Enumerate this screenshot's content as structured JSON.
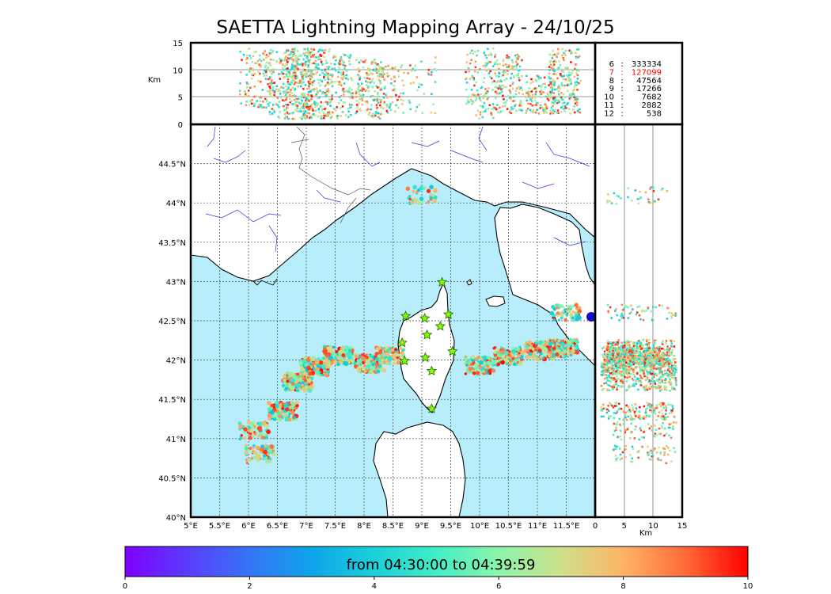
{
  "title": "SAETTA Lightning Mapping Array - 24/10/25",
  "colors": {
    "sea": "#b8eefb",
    "land": "#ffffff",
    "coast": "#000000",
    "rivers": "#3333dd",
    "borders": "#555555",
    "grid": "#444444",
    "station_fill": "#7fff00",
    "station_stroke": "#226600",
    "highlight_stat": "#ff0000"
  },
  "chart_data": {
    "type": "scatter",
    "map": {
      "lon_range": [
        5,
        12
      ],
      "lat_range": [
        40,
        45
      ],
      "lon_ticks": [
        "5°E",
        "5.5°E",
        "6°E",
        "6.5°E",
        "7°E",
        "7.5°E",
        "8°E",
        "8.5°E",
        "9°E",
        "9.5°E",
        "10°E",
        "10.5°E",
        "11°E",
        "11.5°E"
      ],
      "lat_ticks": [
        "40°N",
        "40.5°N",
        "41°N",
        "41.5°N",
        "42°N",
        "42.5°N",
        "43°N",
        "43.5°N",
        "44°N",
        "44.5°N"
      ],
      "grid": true
    },
    "altitude_panel": {
      "ylabel": "Km",
      "y_ticks": [
        "0",
        "5",
        "10",
        "15"
      ],
      "ylim": [
        0,
        15
      ]
    },
    "side_panel": {
      "xlabel": "Km",
      "x_ticks": [
        "0",
        "5",
        "10",
        "15"
      ],
      "xlim": [
        0,
        15
      ]
    },
    "station_counts": [
      {
        "stations": "6",
        "count": "333334",
        "highlight": false
      },
      {
        "stations": "7",
        "count": "127099",
        "highlight": true
      },
      {
        "stations": "8",
        "count": "47564",
        "highlight": false
      },
      {
        "stations": "9",
        "count": "17266",
        "highlight": false
      },
      {
        "stations": "10",
        "count": "7682",
        "highlight": false
      },
      {
        "stations": "11",
        "count": "2882",
        "highlight": false
      },
      {
        "stations": "12",
        "count": "538",
        "highlight": false
      }
    ],
    "stations": [
      {
        "lon": 9.35,
        "lat": 42.99
      },
      {
        "lon": 8.72,
        "lat": 42.56
      },
      {
        "lon": 9.05,
        "lat": 42.53
      },
      {
        "lon": 9.46,
        "lat": 42.58
      },
      {
        "lon": 9.32,
        "lat": 42.43
      },
      {
        "lon": 9.09,
        "lat": 42.32
      },
      {
        "lon": 8.66,
        "lat": 42.22
      },
      {
        "lon": 9.53,
        "lat": 42.11
      },
      {
        "lon": 8.7,
        "lat": 41.99
      },
      {
        "lon": 9.06,
        "lat": 42.03
      },
      {
        "lon": 9.17,
        "lat": 41.86
      },
      {
        "lon": 9.17,
        "lat": 41.38
      }
    ],
    "clusters": [
      {
        "lon": 6.1,
        "lat": 41.1,
        "zmin": 3,
        "zmax": 14,
        "n": 22,
        "slope": 0
      },
      {
        "lon": 6.2,
        "lat": 40.8,
        "zmin": 3,
        "zmax": 14,
        "n": 22,
        "slope": 0
      },
      {
        "lon": 6.6,
        "lat": 41.35,
        "zmin": 1,
        "zmax": 14,
        "n": 50,
        "slope": 0
      },
      {
        "lon": 6.85,
        "lat": 41.72,
        "zmin": 1,
        "zmax": 14,
        "n": 70,
        "slope": 0
      },
      {
        "lon": 7.15,
        "lat": 41.92,
        "zmin": 1,
        "zmax": 14,
        "n": 70,
        "slope": 0
      },
      {
        "lon": 7.55,
        "lat": 42.06,
        "zmin": 1,
        "zmax": 13,
        "n": 50,
        "slope": 0
      },
      {
        "lon": 8.1,
        "lat": 41.95,
        "zmin": 1,
        "zmax": 12,
        "n": 50,
        "slope": 0
      },
      {
        "lon": 8.45,
        "lat": 42.05,
        "zmin": 2,
        "zmax": 11,
        "n": 30,
        "slope": 0
      },
      {
        "lon": 9.0,
        "lat": 44.1,
        "zmin": 2,
        "zmax": 13,
        "n": 12,
        "slope": 0
      },
      {
        "lon": 10.0,
        "lat": 41.93,
        "zmin": 1,
        "zmax": 14,
        "n": 40,
        "slope": 0
      },
      {
        "lon": 10.5,
        "lat": 42.05,
        "zmin": 2,
        "zmax": 13,
        "n": 50,
        "slope": 0
      },
      {
        "lon": 11.05,
        "lat": 42.12,
        "zmin": 2,
        "zmax": 9,
        "n": 40,
        "slope": 0
      },
      {
        "lon": 11.45,
        "lat": 42.15,
        "zmin": 2,
        "zmax": 14,
        "n": 50,
        "slope": 0
      },
      {
        "lon": 11.5,
        "lat": 42.6,
        "zmin": 2,
        "zmax": 14,
        "n": 20,
        "slope": 0
      }
    ],
    "colorbar": {
      "label": "from 04:30:00 to 04:39:59",
      "ticks": [
        "0",
        "2",
        "4",
        "6",
        "8",
        "10"
      ],
      "range": [
        0,
        10
      ],
      "colormap": "rainbow"
    }
  }
}
